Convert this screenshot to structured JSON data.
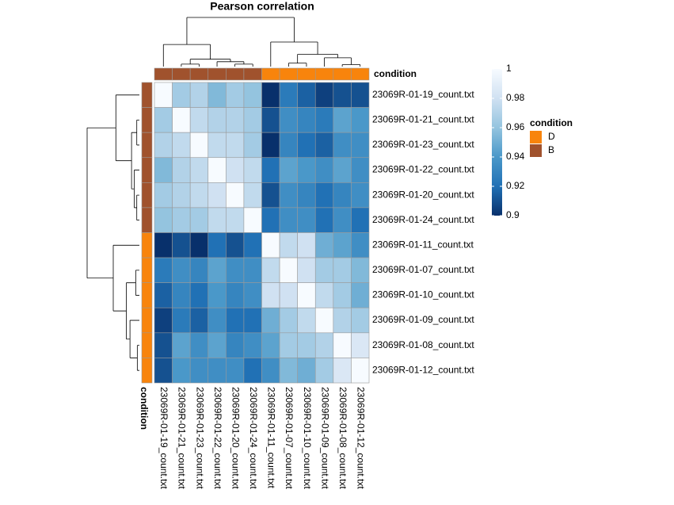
{
  "chart_data": {
    "type": "heatmap",
    "title": "Pearson correlation",
    "categories": [
      "23069R-01-19_count.txt",
      "23069R-01-21_count.txt",
      "23069R-01-23_count.txt",
      "23069R-01-22_count.txt",
      "23069R-01-20_count.txt",
      "23069R-01-24_count.txt",
      "23069R-01-11_count.txt",
      "23069R-01-07_count.txt",
      "23069R-01-10_count.txt",
      "23069R-01-09_count.txt",
      "23069R-01-08_count.txt",
      "23069R-01-12_count.txt"
    ],
    "values": [
      [
        1,
        0.965,
        0.97,
        0.955,
        0.965,
        0.96,
        0.9,
        0.925,
        0.915,
        0.905,
        0.91,
        0.91
      ],
      [
        0.965,
        1,
        0.975,
        0.97,
        0.97,
        0.965,
        0.91,
        0.935,
        0.93,
        0.925,
        0.945,
        0.94
      ],
      [
        0.97,
        0.975,
        1,
        0.975,
        0.975,
        0.965,
        0.9,
        0.93,
        0.92,
        0.915,
        0.935,
        0.935
      ],
      [
        0.955,
        0.97,
        0.975,
        1,
        0.98,
        0.975,
        0.92,
        0.945,
        0.94,
        0.935,
        0.945,
        0.935
      ],
      [
        0.965,
        0.97,
        0.975,
        0.98,
        1,
        0.975,
        0.91,
        0.935,
        0.93,
        0.92,
        0.93,
        0.935
      ],
      [
        0.96,
        0.965,
        0.965,
        0.975,
        0.975,
        1,
        0.92,
        0.935,
        0.935,
        0.92,
        0.935,
        0.92
      ],
      [
        0.9,
        0.91,
        0.9,
        0.92,
        0.91,
        0.92,
        1,
        0.975,
        0.98,
        0.95,
        0.945,
        0.935
      ],
      [
        0.925,
        0.935,
        0.93,
        0.945,
        0.935,
        0.935,
        0.975,
        1,
        0.98,
        0.965,
        0.965,
        0.955
      ],
      [
        0.915,
        0.93,
        0.92,
        0.94,
        0.93,
        0.935,
        0.98,
        0.98,
        1,
        0.975,
        0.965,
        0.95
      ],
      [
        0.905,
        0.925,
        0.915,
        0.935,
        0.92,
        0.92,
        0.95,
        0.965,
        0.975,
        1,
        0.97,
        0.965
      ],
      [
        0.91,
        0.945,
        0.935,
        0.945,
        0.93,
        0.935,
        0.945,
        0.965,
        0.965,
        0.97,
        1,
        0.985
      ],
      [
        0.91,
        0.94,
        0.935,
        0.935,
        0.935,
        0.92,
        0.935,
        0.955,
        0.95,
        0.965,
        0.985,
        1
      ]
    ],
    "zlim": [
      0.9,
      1
    ],
    "zticks": [
      1,
      0.98,
      0.96,
      0.94,
      0.92,
      0.9
    ],
    "colors": [
      "#08306b",
      "#2171b5",
      "#4a98c9",
      "#94c4df",
      "#d0e1f2",
      "#f7fbff"
    ],
    "annotation": {
      "name": "condition",
      "groups": [
        "B",
        "B",
        "B",
        "B",
        "B",
        "B",
        "D",
        "D",
        "D",
        "D",
        "D",
        "D"
      ],
      "legend": [
        {
          "name": "D",
          "color": "#f8840c"
        },
        {
          "name": "B",
          "color": "#a0522d"
        }
      ]
    }
  }
}
